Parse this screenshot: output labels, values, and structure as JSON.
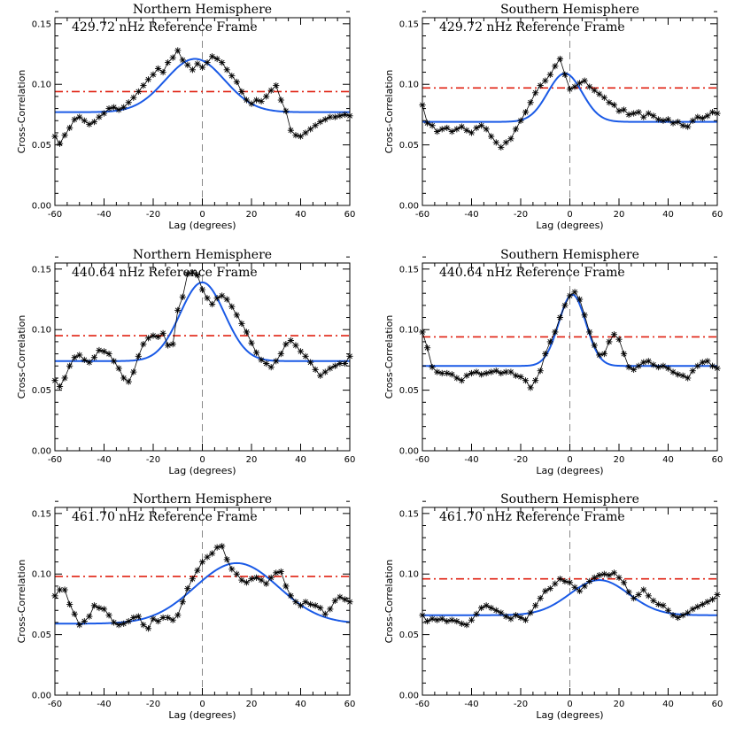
{
  "chart_data": [
    {
      "type": "line",
      "title": "Northern Hemisphere",
      "annotation": "429.72 nHz Reference Frame",
      "xlabel": "Lag (degrees)",
      "ylabel": "Cross-Correlation",
      "xlim": [
        -60,
        60
      ],
      "ylim": [
        0,
        0.155
      ],
      "xticks": [
        -60,
        -40,
        -20,
        0,
        20,
        40,
        60
      ],
      "yticks": [
        0.0,
        0.05,
        0.1,
        0.15
      ],
      "ytick_labels": [
        "0.00",
        "0.05",
        "0.10",
        "0.15"
      ],
      "threshold": 0.094,
      "fit": {
        "baseline": 0.077,
        "amplitude": 0.044,
        "center": -3,
        "sigma": 12
      },
      "x": [
        -60,
        -58,
        -56,
        -54,
        -52,
        -50,
        -48,
        -46,
        -44,
        -42,
        -40,
        -38,
        -36,
        -34,
        -32,
        -30,
        -28,
        -26,
        -24,
        -22,
        -20,
        -18,
        -16,
        -14,
        -12,
        -10,
        -8,
        -6,
        -4,
        -2,
        0,
        2,
        4,
        6,
        8,
        10,
        12,
        14,
        16,
        18,
        20,
        22,
        24,
        26,
        28,
        30,
        32,
        34,
        36,
        38,
        40,
        42,
        44,
        46,
        48,
        50,
        52,
        54,
        56,
        58,
        60
      ],
      "y": [
        0.057,
        0.051,
        0.058,
        0.064,
        0.071,
        0.073,
        0.07,
        0.067,
        0.069,
        0.073,
        0.076,
        0.08,
        0.081,
        0.079,
        0.081,
        0.085,
        0.089,
        0.094,
        0.099,
        0.104,
        0.108,
        0.113,
        0.11,
        0.118,
        0.122,
        0.128,
        0.12,
        0.116,
        0.112,
        0.117,
        0.114,
        0.118,
        0.123,
        0.121,
        0.118,
        0.112,
        0.107,
        0.102,
        0.094,
        0.087,
        0.084,
        0.087,
        0.086,
        0.09,
        0.095,
        0.099,
        0.087,
        0.078,
        0.062,
        0.058,
        0.057,
        0.06,
        0.063,
        0.066,
        0.069,
        0.071,
        0.073,
        0.073,
        0.074,
        0.075,
        0.074
      ]
    },
    {
      "type": "line",
      "title": "Southern Hemisphere",
      "annotation": "429.72 nHz Reference Frame",
      "xlabel": "Lag (degrees)",
      "ylabel": "Cross-Correlation",
      "xlim": [
        -60,
        60
      ],
      "ylim": [
        0,
        0.155
      ],
      "xticks": [
        -60,
        -40,
        -20,
        0,
        20,
        40,
        60
      ],
      "yticks": [
        0.0,
        0.05,
        0.1,
        0.15
      ],
      "ytick_labels": [
        "0.00",
        "0.05",
        "0.10",
        "0.15"
      ],
      "threshold": 0.097,
      "fit": {
        "baseline": 0.069,
        "amplitude": 0.04,
        "center": -2,
        "sigma": 7
      },
      "x": [
        -60,
        -58,
        -56,
        -54,
        -52,
        -50,
        -48,
        -46,
        -44,
        -42,
        -40,
        -38,
        -36,
        -34,
        -32,
        -30,
        -28,
        -26,
        -24,
        -22,
        -20,
        -18,
        -16,
        -14,
        -12,
        -10,
        -8,
        -6,
        -4,
        -2,
        0,
        2,
        4,
        6,
        8,
        10,
        12,
        14,
        16,
        18,
        20,
        22,
        24,
        26,
        28,
        30,
        32,
        34,
        36,
        38,
        40,
        42,
        44,
        46,
        48,
        50,
        52,
        54,
        56,
        58,
        60
      ],
      "y": [
        0.083,
        0.068,
        0.066,
        0.061,
        0.063,
        0.064,
        0.061,
        0.063,
        0.065,
        0.062,
        0.06,
        0.064,
        0.066,
        0.063,
        0.057,
        0.052,
        0.048,
        0.052,
        0.055,
        0.063,
        0.07,
        0.077,
        0.085,
        0.093,
        0.099,
        0.103,
        0.108,
        0.115,
        0.121,
        0.108,
        0.096,
        0.098,
        0.101,
        0.103,
        0.098,
        0.095,
        0.092,
        0.089,
        0.085,
        0.083,
        0.078,
        0.079,
        0.075,
        0.076,
        0.077,
        0.073,
        0.076,
        0.074,
        0.071,
        0.07,
        0.071,
        0.068,
        0.069,
        0.066,
        0.065,
        0.07,
        0.073,
        0.072,
        0.074,
        0.077,
        0.076
      ]
    },
    {
      "type": "line",
      "title": "Northern Hemisphere",
      "annotation": "440.64 nHz Reference Frame",
      "xlabel": "Lag (degrees)",
      "ylabel": "Cross-Correlation",
      "xlim": [
        -60,
        60
      ],
      "ylim": [
        0,
        0.155
      ],
      "xticks": [
        -60,
        -40,
        -20,
        0,
        20,
        40,
        60
      ],
      "yticks": [
        0.0,
        0.05,
        0.1,
        0.15
      ],
      "ytick_labels": [
        "0.00",
        "0.05",
        "0.10",
        "0.15"
      ],
      "threshold": 0.095,
      "fit": {
        "baseline": 0.074,
        "amplitude": 0.065,
        "center": 0,
        "sigma": 9
      },
      "x": [
        -60,
        -58,
        -56,
        -54,
        -52,
        -50,
        -48,
        -46,
        -44,
        -42,
        -40,
        -38,
        -36,
        -34,
        -32,
        -30,
        -28,
        -26,
        -24,
        -22,
        -20,
        -18,
        -16,
        -14,
        -12,
        -10,
        -8,
        -6,
        -4,
        -2,
        0,
        2,
        4,
        6,
        8,
        10,
        12,
        14,
        16,
        18,
        20,
        22,
        24,
        26,
        28,
        30,
        32,
        34,
        36,
        38,
        40,
        42,
        44,
        46,
        48,
        50,
        52,
        54,
        56,
        58,
        60
      ],
      "y": [
        0.058,
        0.053,
        0.06,
        0.07,
        0.077,
        0.079,
        0.075,
        0.073,
        0.077,
        0.083,
        0.082,
        0.08,
        0.074,
        0.068,
        0.06,
        0.057,
        0.065,
        0.078,
        0.088,
        0.093,
        0.095,
        0.094,
        0.097,
        0.087,
        0.088,
        0.116,
        0.127,
        0.146,
        0.147,
        0.145,
        0.133,
        0.126,
        0.121,
        0.126,
        0.128,
        0.125,
        0.119,
        0.112,
        0.105,
        0.098,
        0.089,
        0.081,
        0.075,
        0.072,
        0.069,
        0.074,
        0.08,
        0.088,
        0.091,
        0.087,
        0.082,
        0.078,
        0.073,
        0.067,
        0.062,
        0.065,
        0.068,
        0.07,
        0.072,
        0.072,
        0.078
      ]
    },
    {
      "type": "line",
      "title": "Southern Hemisphere",
      "annotation": "440.64 nHz Reference Frame",
      "xlabel": "Lag (degrees)",
      "ylabel": "Cross-Correlation",
      "xlim": [
        -60,
        60
      ],
      "ylim": [
        0,
        0.155
      ],
      "xticks": [
        -60,
        -40,
        -20,
        0,
        20,
        40,
        60
      ],
      "yticks": [
        0.0,
        0.05,
        0.1,
        0.15
      ],
      "ytick_labels": [
        "0.00",
        "0.05",
        "0.10",
        "0.15"
      ],
      "threshold": 0.094,
      "fit": {
        "baseline": 0.07,
        "amplitude": 0.059,
        "center": 1,
        "sigma": 5.5
      },
      "x": [
        -60,
        -58,
        -56,
        -54,
        -52,
        -50,
        -48,
        -46,
        -44,
        -42,
        -40,
        -38,
        -36,
        -34,
        -32,
        -30,
        -28,
        -26,
        -24,
        -22,
        -20,
        -18,
        -16,
        -14,
        -12,
        -10,
        -8,
        -6,
        -4,
        -2,
        0,
        2,
        4,
        6,
        8,
        10,
        12,
        14,
        16,
        18,
        20,
        22,
        24,
        26,
        28,
        30,
        32,
        34,
        36,
        38,
        40,
        42,
        44,
        46,
        48,
        50,
        52,
        54,
        56,
        58,
        60
      ],
      "y": [
        0.098,
        0.085,
        0.069,
        0.065,
        0.064,
        0.064,
        0.063,
        0.06,
        0.058,
        0.062,
        0.064,
        0.065,
        0.063,
        0.064,
        0.065,
        0.066,
        0.064,
        0.065,
        0.065,
        0.062,
        0.061,
        0.058,
        0.052,
        0.058,
        0.066,
        0.08,
        0.09,
        0.098,
        0.11,
        0.12,
        0.128,
        0.131,
        0.125,
        0.112,
        0.098,
        0.087,
        0.079,
        0.08,
        0.09,
        0.096,
        0.092,
        0.08,
        0.069,
        0.067,
        0.07,
        0.073,
        0.074,
        0.071,
        0.069,
        0.07,
        0.068,
        0.065,
        0.063,
        0.062,
        0.06,
        0.066,
        0.07,
        0.073,
        0.074,
        0.07,
        0.068
      ]
    },
    {
      "type": "line",
      "title": "Northern Hemisphere",
      "annotation": "461.70 nHz Reference Frame",
      "xlabel": "Lag (degrees)",
      "ylabel": "Cross-Correlation",
      "xlim": [
        -60,
        60
      ],
      "ylim": [
        0,
        0.155
      ],
      "xticks": [
        -60,
        -40,
        -20,
        0,
        20,
        40,
        60
      ],
      "yticks": [
        0.0,
        0.05,
        0.1,
        0.15
      ],
      "ytick_labels": [
        "0.00",
        "0.05",
        "0.10",
        "0.15"
      ],
      "threshold": 0.098,
      "fit": {
        "baseline": 0.059,
        "amplitude": 0.05,
        "center": 14,
        "sigma": 17
      },
      "x": [
        -60,
        -58,
        -56,
        -54,
        -52,
        -50,
        -48,
        -46,
        -44,
        -42,
        -40,
        -38,
        -36,
        -34,
        -32,
        -30,
        -28,
        -26,
        -24,
        -22,
        -20,
        -18,
        -16,
        -14,
        -12,
        -10,
        -8,
        -6,
        -4,
        -2,
        0,
        2,
        4,
        6,
        8,
        10,
        12,
        14,
        16,
        18,
        20,
        22,
        24,
        26,
        28,
        30,
        32,
        34,
        36,
        38,
        40,
        42,
        44,
        46,
        48,
        50,
        52,
        54,
        56,
        58,
        60
      ],
      "y": [
        0.082,
        0.087,
        0.087,
        0.075,
        0.067,
        0.058,
        0.061,
        0.065,
        0.074,
        0.072,
        0.071,
        0.066,
        0.06,
        0.058,
        0.059,
        0.061,
        0.064,
        0.065,
        0.058,
        0.055,
        0.063,
        0.061,
        0.064,
        0.064,
        0.062,
        0.066,
        0.077,
        0.088,
        0.096,
        0.103,
        0.11,
        0.114,
        0.117,
        0.122,
        0.123,
        0.112,
        0.104,
        0.1,
        0.095,
        0.093,
        0.096,
        0.097,
        0.095,
        0.092,
        0.097,
        0.101,
        0.102,
        0.09,
        0.082,
        0.077,
        0.074,
        0.077,
        0.075,
        0.074,
        0.072,
        0.067,
        0.071,
        0.078,
        0.081,
        0.079,
        0.077
      ]
    },
    {
      "type": "line",
      "title": "Southern Hemisphere",
      "annotation": "461.70 nHz Reference Frame",
      "xlabel": "Lag (degrees)",
      "ylabel": "Cross-Correlation",
      "xlim": [
        -60,
        60
      ],
      "ylim": [
        0,
        0.155
      ],
      "xticks": [
        -60,
        -40,
        -20,
        0,
        20,
        40,
        60
      ],
      "yticks": [
        0.0,
        0.05,
        0.1,
        0.15
      ],
      "ytick_labels": [
        "0.00",
        "0.05",
        "0.10",
        "0.15"
      ],
      "threshold": 0.096,
      "fit": {
        "baseline": 0.066,
        "amplitude": 0.029,
        "center": 12,
        "sigma": 12
      },
      "x": [
        -60,
        -58,
        -56,
        -54,
        -52,
        -50,
        -48,
        -46,
        -44,
        -42,
        -40,
        -38,
        -36,
        -34,
        -32,
        -30,
        -28,
        -26,
        -24,
        -22,
        -20,
        -18,
        -16,
        -14,
        -12,
        -10,
        -8,
        -6,
        -4,
        -2,
        0,
        2,
        4,
        6,
        8,
        10,
        12,
        14,
        16,
        18,
        20,
        22,
        24,
        26,
        28,
        30,
        32,
        34,
        36,
        38,
        40,
        42,
        44,
        46,
        48,
        50,
        52,
        54,
        56,
        58,
        60
      ],
      "y": [
        0.066,
        0.061,
        0.063,
        0.062,
        0.063,
        0.061,
        0.062,
        0.061,
        0.059,
        0.058,
        0.062,
        0.067,
        0.072,
        0.074,
        0.072,
        0.07,
        0.068,
        0.065,
        0.063,
        0.066,
        0.064,
        0.062,
        0.068,
        0.074,
        0.08,
        0.086,
        0.088,
        0.092,
        0.096,
        0.094,
        0.093,
        0.089,
        0.086,
        0.09,
        0.094,
        0.097,
        0.099,
        0.1,
        0.099,
        0.101,
        0.097,
        0.093,
        0.085,
        0.08,
        0.083,
        0.087,
        0.082,
        0.078,
        0.075,
        0.074,
        0.07,
        0.066,
        0.064,
        0.066,
        0.068,
        0.071,
        0.073,
        0.075,
        0.077,
        0.079,
        0.083
      ]
    }
  ]
}
